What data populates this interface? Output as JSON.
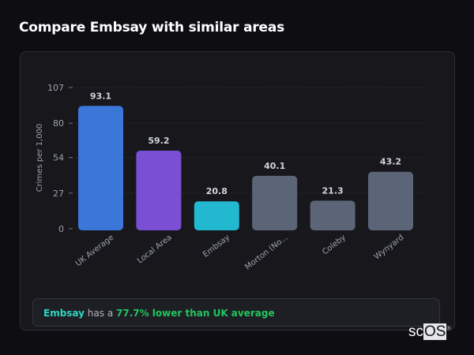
{
  "title": "Compare Embsay with similar areas",
  "chart_data": {
    "type": "bar",
    "categories": [
      "UK Average",
      "Local Area",
      "Embsay",
      "Morton (No...",
      "Coleby",
      "Wynyard"
    ],
    "values": [
      93.1,
      59.2,
      20.8,
      40.1,
      21.3,
      43.2
    ],
    "data_labels": [
      "93.1",
      "59.2",
      "20.8",
      "40.1",
      "21.3",
      "43.2"
    ],
    "colors": [
      "#3a77d9",
      "#7b4fd4",
      "#22b8cf",
      "#5b6577",
      "#5b6577",
      "#5b6577"
    ],
    "ylabel": "Crimes per 1,000",
    "xlabel": "",
    "yticks": [
      0,
      27,
      54,
      80,
      107
    ],
    "ylim": [
      0,
      107
    ],
    "grid": true
  },
  "insight": {
    "area": "Embsay",
    "middle": " has a ",
    "comparison": "77.7% lower than UK average"
  },
  "watermark": {
    "prefix": "sc",
    "boxed": "OS",
    "mark": "®"
  }
}
